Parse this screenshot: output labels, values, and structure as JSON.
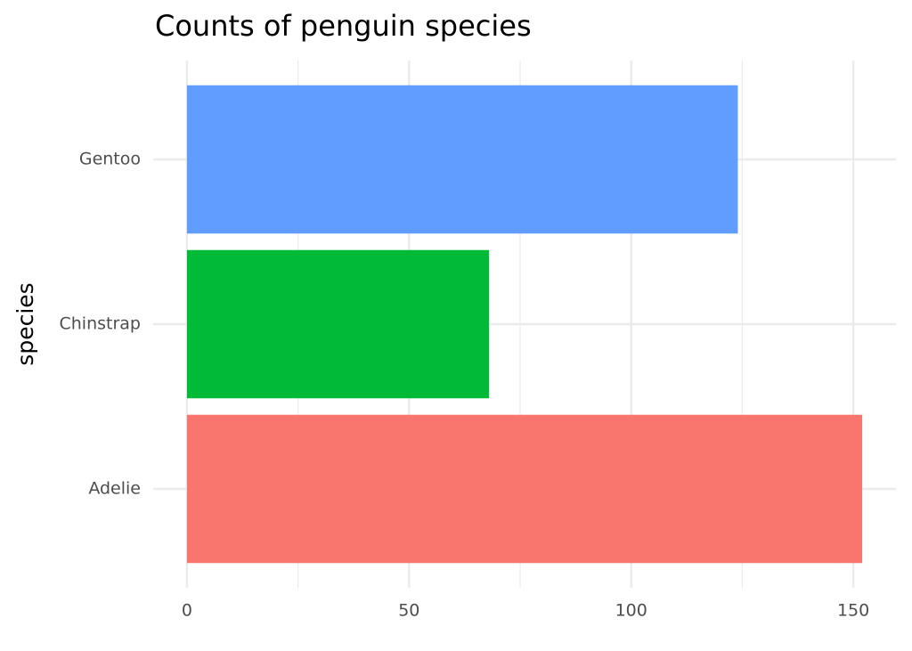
{
  "chart_data": {
    "type": "barh",
    "title": "Counts of penguin species",
    "y_label": "species",
    "categories": [
      "Adelie",
      "Chinstrap",
      "Gentoo"
    ],
    "values": [
      152,
      68,
      124
    ],
    "colors": [
      "#F8766D",
      "#00BA38",
      "#619CFF"
    ],
    "xlim": [
      -7.6,
      159.6
    ],
    "xticks": [
      0,
      50,
      100,
      150
    ],
    "xminorticks": [
      25,
      75,
      125
    ],
    "grid": true
  }
}
